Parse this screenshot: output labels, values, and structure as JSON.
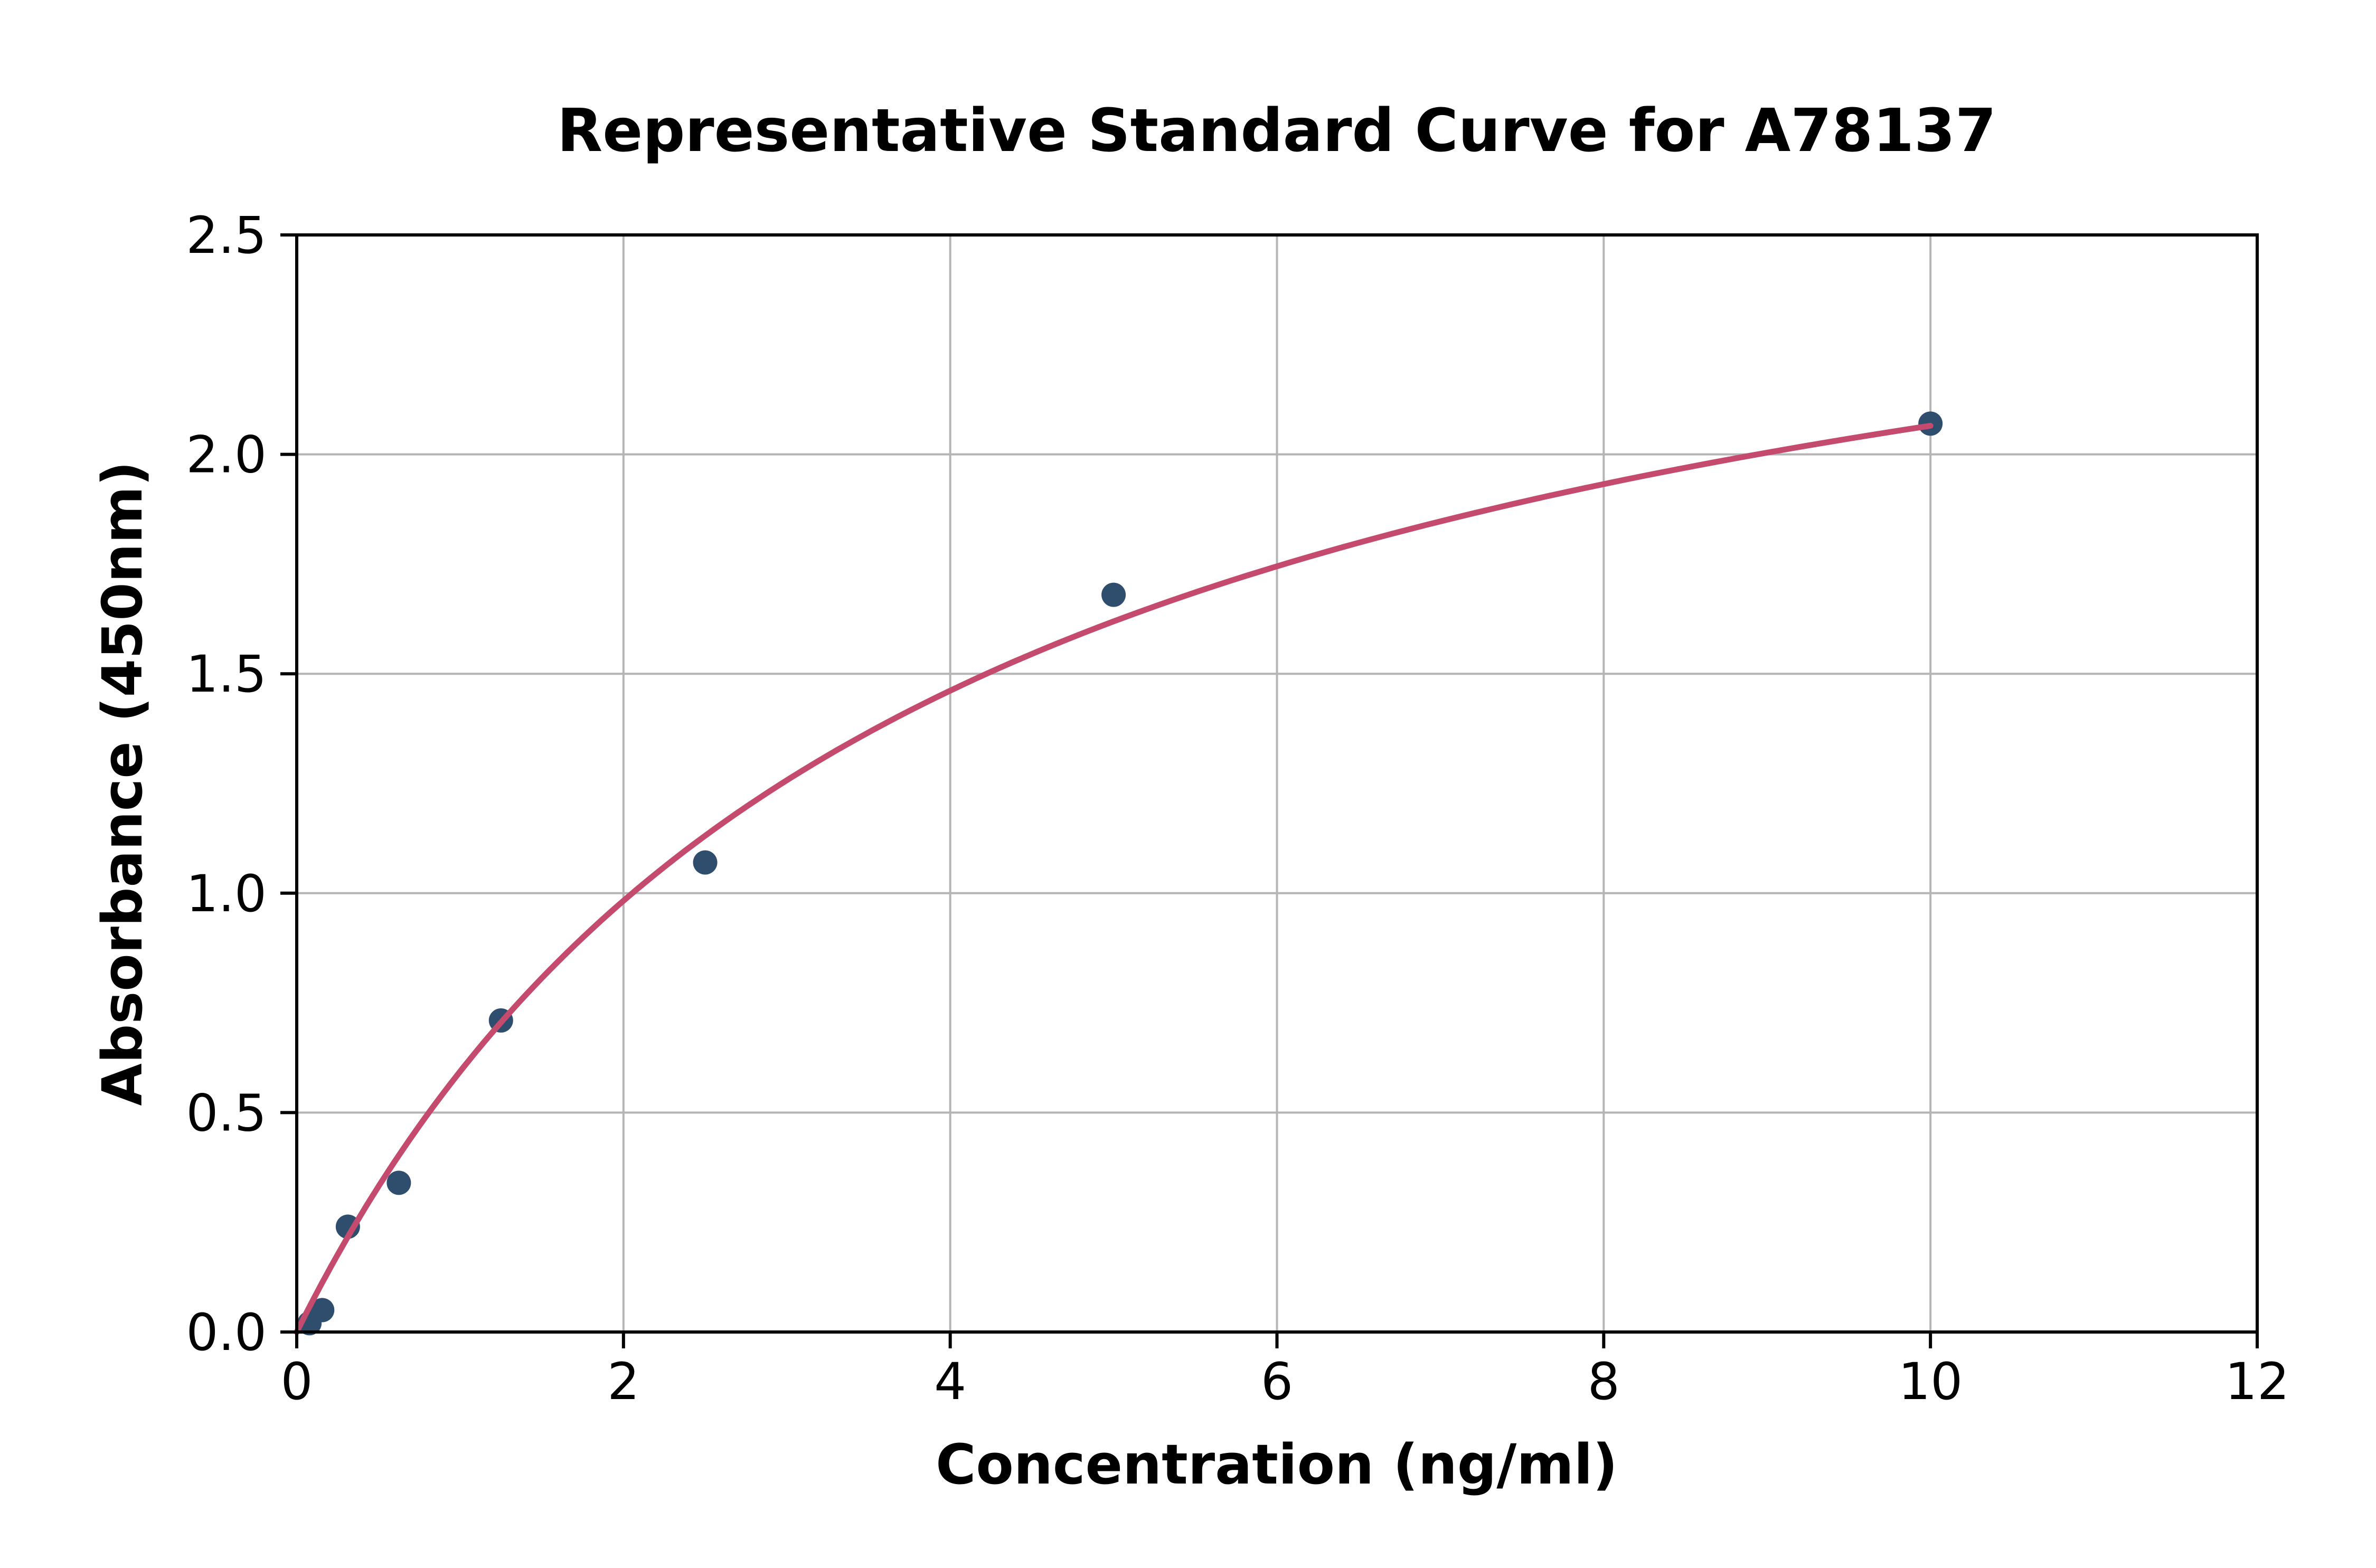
{
  "page": {
    "background": "#ffffff"
  },
  "chart_data": {
    "type": "scatter",
    "title": "Representative Standard Curve for A78137",
    "xlabel": "Concentration (ng/ml)",
    "ylabel": "Absorbance (450nm)",
    "xlim": [
      0,
      12
    ],
    "ylim": [
      0,
      2.5
    ],
    "xtick_values": [
      0,
      2,
      4,
      6,
      8,
      10,
      12
    ],
    "xtick_labels": [
      "0",
      "2",
      "4",
      "6",
      "8",
      "10",
      "12"
    ],
    "ytick_values": [
      0,
      0.5,
      1.0,
      1.5,
      2.0,
      2.5
    ],
    "ytick_labels": [
      "0.0",
      "0.5",
      "1.0",
      "1.5",
      "2.0",
      "2.5"
    ],
    "grid": true,
    "legend_position": "none",
    "colors": {
      "point_color": "#2f4d6d",
      "curve_color": "#c44a6e",
      "axis_color": "#000000",
      "grid_color": "#b5b5b5"
    },
    "series": [
      {
        "name": "standards",
        "type": "scatter",
        "points": [
          [
            0.078,
            0.02
          ],
          [
            0.156,
            0.05
          ],
          [
            0.313,
            0.24
          ],
          [
            0.625,
            0.34
          ],
          [
            1.25,
            0.71
          ],
          [
            2.5,
            1.07
          ],
          [
            5,
            1.68
          ],
          [
            10,
            2.07
          ]
        ]
      },
      {
        "name": "fitted-curve",
        "type": "line",
        "fit": {
          "model": "michaelis-menten",
          "vmax": 2.85,
          "km": 3.8,
          "x_start": 0,
          "x_end": 10
        }
      }
    ]
  }
}
